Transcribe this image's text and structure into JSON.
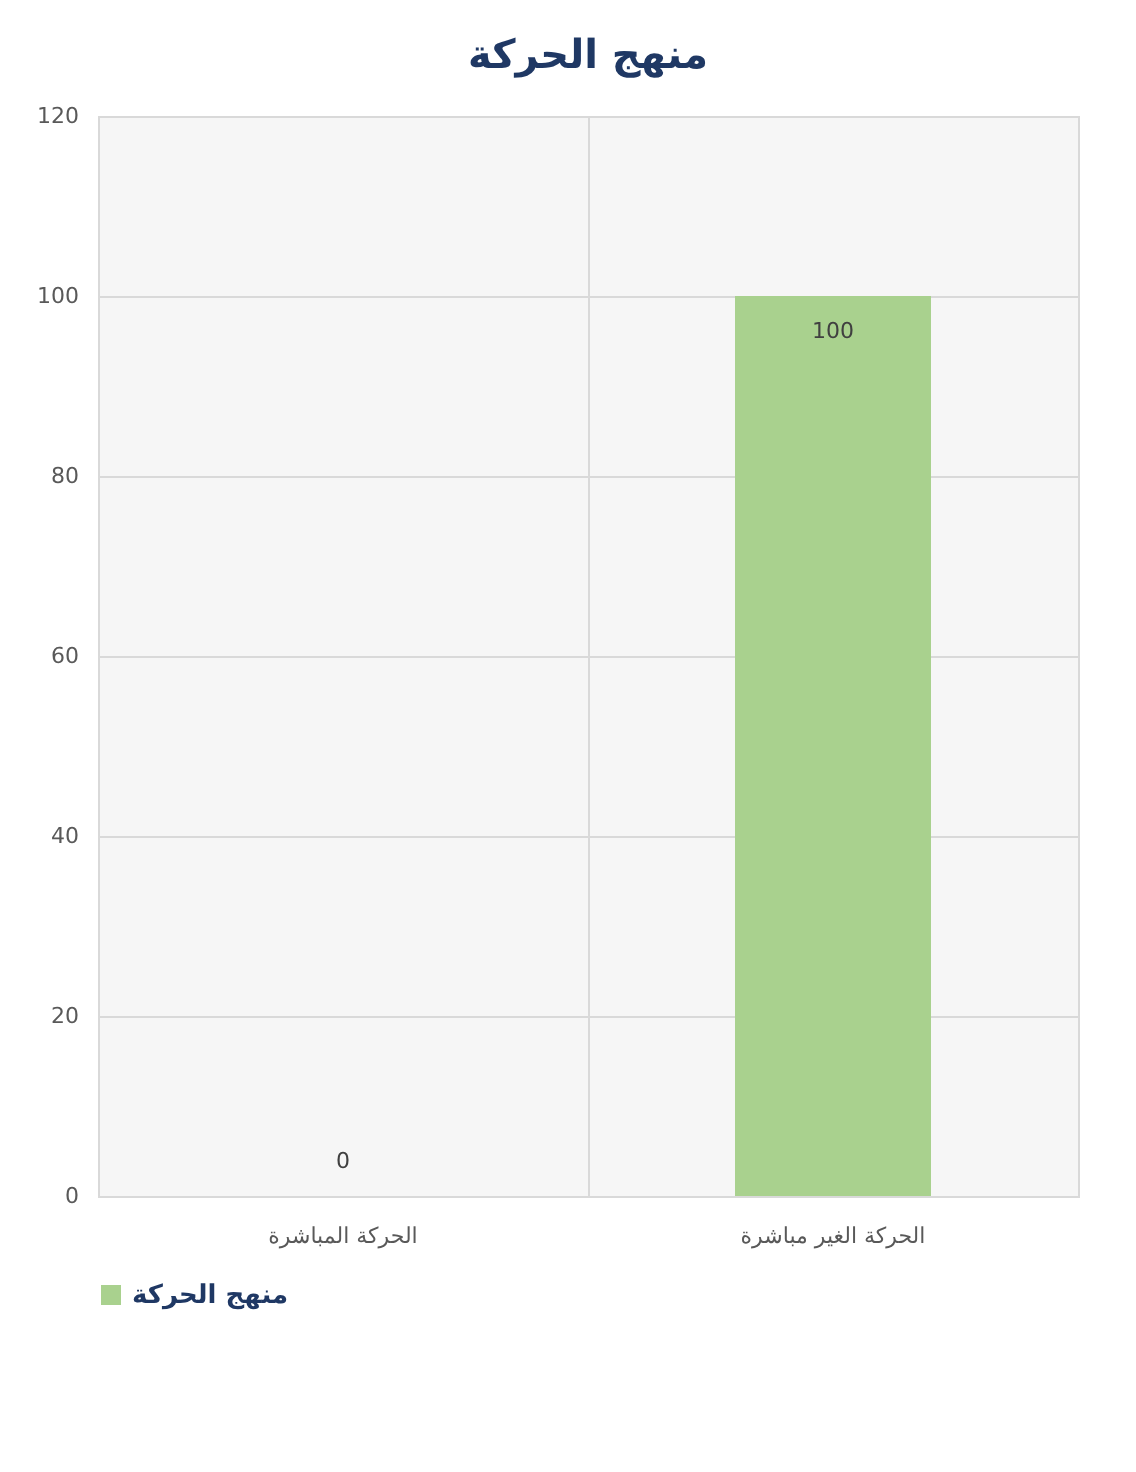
{
  "chart_data": {
    "type": "bar",
    "title": "منهج الحركة",
    "categories": [
      "الحركة المباشرة",
      "الحركة الغير مباشرة"
    ],
    "series": [
      {
        "name": "منهج الحركة",
        "color": "#a9d18e",
        "values": [
          0,
          100
        ]
      }
    ],
    "ylim": [
      0,
      120
    ],
    "yticks": [
      0,
      20,
      40,
      60,
      80,
      100,
      120
    ],
    "grid": true,
    "legend": "bottom",
    "data_labels": true
  }
}
